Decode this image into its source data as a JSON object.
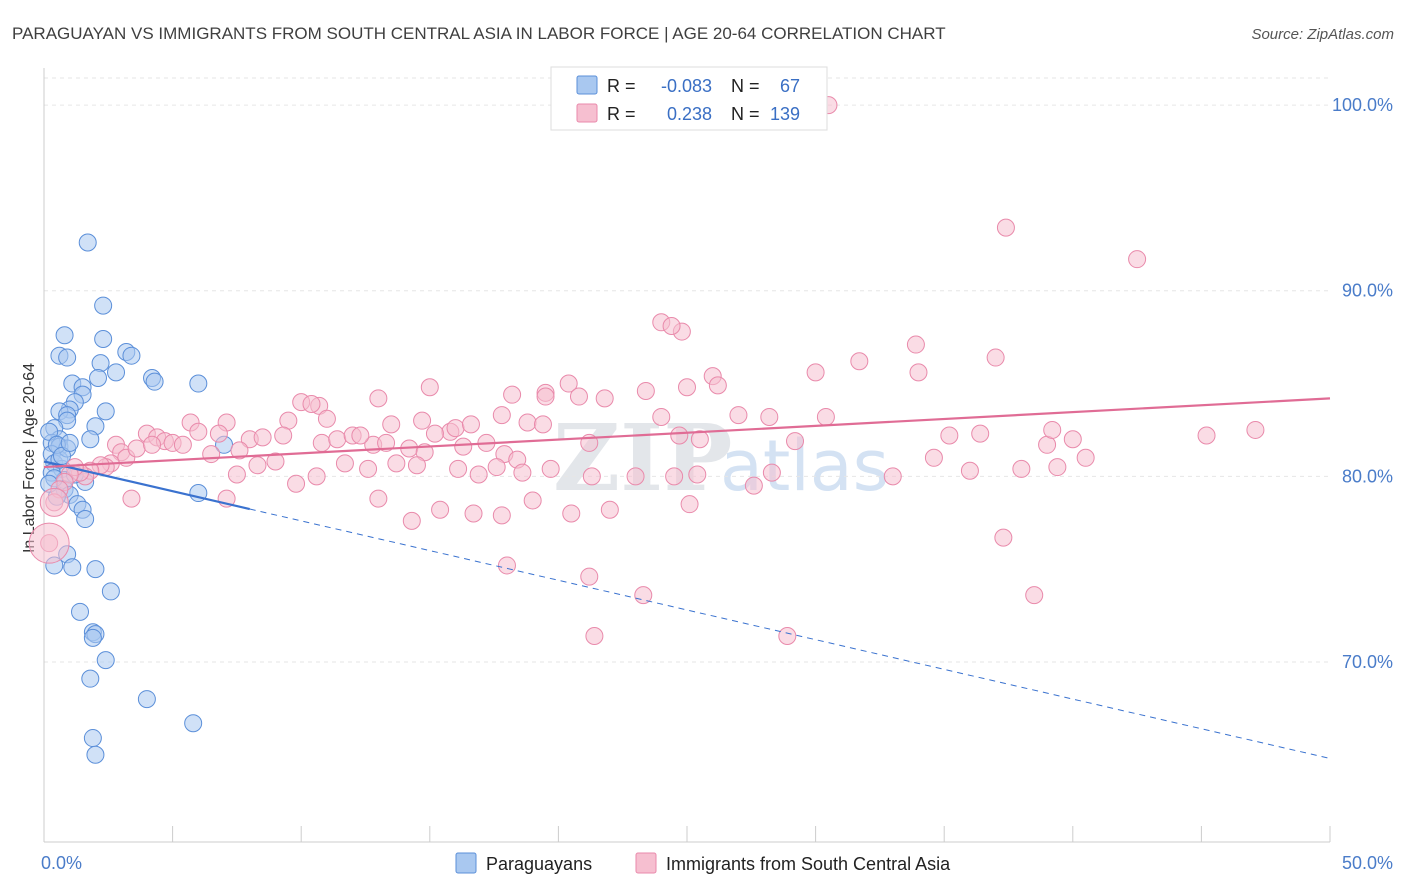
{
  "colors": {
    "blue_fill": "#a9c8f0",
    "blue_stroke": "#5b8fd9",
    "blue_line": "#3a72cf",
    "pink_fill": "#f6bfd0",
    "pink_stroke": "#e98aab",
    "pink_line": "#e06c95",
    "tick_text": "#4a7cc9",
    "grid": "#e6e6e6"
  },
  "source_label": "Source: ZipAtlas.com",
  "watermark": {
    "zip": "ZIP",
    "atlas": "atlas"
  },
  "legend": {
    "r_label": "R =",
    "n_label": "N =",
    "rows": [
      {
        "r": "-0.083",
        "n": "67"
      },
      {
        "r": "0.238",
        "n": "139"
      }
    ]
  },
  "chart_data": {
    "type": "scatter",
    "title": "PARAGUAYAN VS IMMIGRANTS FROM SOUTH CENTRAL ASIA IN LABOR FORCE | AGE 20-64 CORRELATION CHART",
    "xlabel": "",
    "ylabel": "In Labor Force | Age 20-64",
    "xlim": [
      0,
      50
    ],
    "ylim": [
      60.3,
      102
    ],
    "x_ticks": [
      {
        "value": 0,
        "label": "0.0%"
      },
      {
        "value": 50,
        "label": "50.0%"
      }
    ],
    "x_minor_ticks": [
      0,
      5,
      10,
      15,
      20,
      25,
      30,
      35,
      40,
      45,
      50
    ],
    "y_ticks": [
      {
        "value": 70,
        "label": "70.0%"
      },
      {
        "value": 80,
        "label": "80.0%"
      },
      {
        "value": 90,
        "label": "90.0%"
      },
      {
        "value": 100,
        "label": "100.0%"
      }
    ],
    "grid": true,
    "legend_position": "top-center",
    "series": [
      {
        "name": "Paraguayans",
        "color_key": "blue",
        "trend": {
          "x0": 0,
          "y0": 80.8,
          "x1_solid": 8,
          "x1": 50,
          "y1": 64.8
        },
        "points": [
          [
            1.7,
            92.6
          ],
          [
            2.3,
            89.2
          ],
          [
            0.8,
            87.6
          ],
          [
            2.3,
            87.4
          ],
          [
            0.6,
            86.5
          ],
          [
            0.9,
            86.4
          ],
          [
            3.2,
            86.7
          ],
          [
            3.4,
            86.5
          ],
          [
            2.2,
            86.1
          ],
          [
            2.8,
            85.6
          ],
          [
            2.1,
            85.3
          ],
          [
            4.2,
            85.3
          ],
          [
            4.3,
            85.1
          ],
          [
            6.0,
            85.0
          ],
          [
            1.1,
            85.0
          ],
          [
            1.5,
            84.8
          ],
          [
            1.5,
            84.4
          ],
          [
            1.2,
            84.0
          ],
          [
            1.0,
            83.6
          ],
          [
            0.6,
            83.5
          ],
          [
            0.9,
            83.3
          ],
          [
            2.4,
            83.5
          ],
          [
            0.9,
            83.0
          ],
          [
            0.4,
            82.6
          ],
          [
            2.0,
            82.7
          ],
          [
            0.6,
            82.0
          ],
          [
            0.3,
            81.8
          ],
          [
            0.6,
            81.6
          ],
          [
            0.3,
            81.2
          ],
          [
            0.2,
            82.4
          ],
          [
            1.8,
            82.0
          ],
          [
            7.0,
            81.7
          ],
          [
            0.4,
            80.7
          ],
          [
            0.7,
            80.4
          ],
          [
            0.3,
            80.2
          ],
          [
            0.8,
            79.8
          ],
          [
            1.6,
            79.7
          ],
          [
            0.8,
            79.3
          ],
          [
            1.0,
            79.0
          ],
          [
            0.5,
            78.9
          ],
          [
            6.0,
            79.1
          ],
          [
            1.3,
            78.5
          ],
          [
            1.5,
            78.2
          ],
          [
            1.6,
            77.7
          ],
          [
            0.9,
            75.8
          ],
          [
            0.4,
            75.2
          ],
          [
            2.0,
            75.0
          ],
          [
            1.1,
            75.1
          ],
          [
            2.6,
            73.8
          ],
          [
            1.4,
            72.7
          ],
          [
            1.9,
            71.6
          ],
          [
            2.0,
            71.5
          ],
          [
            1.9,
            71.3
          ],
          [
            2.4,
            70.1
          ],
          [
            1.8,
            69.1
          ],
          [
            4.0,
            68.0
          ],
          [
            5.8,
            66.7
          ],
          [
            1.9,
            65.9
          ],
          [
            2.0,
            65.0
          ],
          [
            0.6,
            80.9
          ],
          [
            0.9,
            81.5
          ],
          [
            0.5,
            81.7
          ],
          [
            0.7,
            81.1
          ],
          [
            1.0,
            81.8
          ],
          [
            0.4,
            79.9
          ],
          [
            0.2,
            79.6
          ],
          [
            1.2,
            80.1
          ]
        ]
      },
      {
        "name": "Immigrants from South Central Asia",
        "color_key": "pink",
        "trend": {
          "x0": 0,
          "y0": 80.5,
          "x1": 50,
          "y1": 84.2
        },
        "points": [
          [
            30.5,
            100.0
          ],
          [
            37.4,
            93.4
          ],
          [
            42.5,
            91.7
          ],
          [
            24.0,
            88.3
          ],
          [
            24.8,
            87.8
          ],
          [
            24.4,
            88.1
          ],
          [
            33.9,
            87.1
          ],
          [
            37.0,
            86.4
          ],
          [
            31.7,
            86.2
          ],
          [
            30.0,
            85.6
          ],
          [
            34.0,
            85.6
          ],
          [
            26.0,
            85.4
          ],
          [
            26.2,
            84.9
          ],
          [
            20.4,
            85.0
          ],
          [
            15.0,
            84.8
          ],
          [
            25.0,
            84.8
          ],
          [
            23.4,
            84.6
          ],
          [
            19.5,
            84.5
          ],
          [
            19.5,
            84.3
          ],
          [
            20.8,
            84.3
          ],
          [
            13.0,
            84.2
          ],
          [
            21.8,
            84.2
          ],
          [
            10.0,
            84.0
          ],
          [
            10.7,
            83.8
          ],
          [
            17.8,
            83.3
          ],
          [
            14.7,
            83.0
          ],
          [
            11.0,
            83.1
          ],
          [
            27.0,
            83.3
          ],
          [
            30.4,
            83.2
          ],
          [
            28.2,
            83.2
          ],
          [
            9.5,
            83.0
          ],
          [
            13.5,
            82.8
          ],
          [
            15.8,
            82.4
          ],
          [
            16.0,
            82.6
          ],
          [
            16.6,
            82.8
          ],
          [
            18.8,
            82.9
          ],
          [
            19.4,
            82.8
          ],
          [
            24.0,
            83.2
          ],
          [
            5.7,
            82.9
          ],
          [
            6.0,
            82.4
          ],
          [
            7.1,
            82.9
          ],
          [
            6.8,
            82.3
          ],
          [
            8.0,
            82.0
          ],
          [
            8.5,
            82.1
          ],
          [
            9.3,
            82.2
          ],
          [
            10.8,
            81.8
          ],
          [
            11.4,
            82.0
          ],
          [
            12.0,
            82.2
          ],
          [
            12.8,
            81.7
          ],
          [
            13.3,
            81.8
          ],
          [
            14.2,
            81.5
          ],
          [
            14.8,
            81.3
          ],
          [
            15.2,
            82.3
          ],
          [
            16.3,
            81.6
          ],
          [
            17.2,
            81.8
          ],
          [
            17.9,
            81.2
          ],
          [
            18.4,
            80.9
          ],
          [
            21.2,
            81.8
          ],
          [
            24.7,
            82.2
          ],
          [
            25.5,
            82.0
          ],
          [
            29.2,
            81.9
          ],
          [
            35.2,
            82.2
          ],
          [
            36.4,
            82.3
          ],
          [
            39.0,
            81.7
          ],
          [
            39.2,
            82.5
          ],
          [
            40.0,
            82.0
          ],
          [
            45.2,
            82.2
          ],
          [
            47.1,
            82.5
          ],
          [
            4.0,
            82.3
          ],
          [
            4.4,
            82.1
          ],
          [
            4.7,
            81.9
          ],
          [
            5.0,
            81.8
          ],
          [
            5.4,
            81.7
          ],
          [
            2.8,
            81.7
          ],
          [
            3.0,
            81.3
          ],
          [
            3.2,
            81.0
          ],
          [
            3.6,
            81.5
          ],
          [
            4.2,
            81.7
          ],
          [
            2.6,
            80.7
          ],
          [
            2.4,
            80.5
          ],
          [
            2.2,
            80.6
          ],
          [
            1.8,
            80.3
          ],
          [
            1.6,
            80.0
          ],
          [
            1.4,
            80.2
          ],
          [
            1.2,
            80.5
          ],
          [
            1.0,
            80.1
          ],
          [
            0.8,
            79.7
          ],
          [
            0.6,
            79.3
          ],
          [
            0.4,
            78.6
          ],
          [
            0.2,
            76.4
          ],
          [
            3.4,
            78.8
          ],
          [
            6.5,
            81.2
          ],
          [
            7.5,
            80.1
          ],
          [
            8.3,
            80.6
          ],
          [
            9.0,
            80.8
          ],
          [
            9.8,
            79.6
          ],
          [
            10.6,
            80.0
          ],
          [
            11.7,
            80.7
          ],
          [
            12.6,
            80.4
          ],
          [
            13.7,
            80.7
          ],
          [
            14.5,
            80.6
          ],
          [
            16.1,
            80.4
          ],
          [
            16.9,
            80.1
          ],
          [
            17.6,
            80.5
          ],
          [
            18.6,
            80.2
          ],
          [
            19.7,
            80.4
          ],
          [
            21.3,
            80.0
          ],
          [
            23.0,
            80.0
          ],
          [
            24.5,
            80.0
          ],
          [
            25.4,
            80.1
          ],
          [
            28.3,
            80.2
          ],
          [
            33.0,
            80.0
          ],
          [
            34.6,
            81.0
          ],
          [
            36.0,
            80.3
          ],
          [
            38.0,
            80.4
          ],
          [
            39.4,
            80.5
          ],
          [
            40.5,
            81.0
          ],
          [
            13.0,
            78.8
          ],
          [
            14.3,
            77.6
          ],
          [
            15.4,
            78.2
          ],
          [
            16.7,
            78.0
          ],
          [
            17.8,
            77.9
          ],
          [
            19.0,
            78.7
          ],
          [
            20.5,
            78.0
          ],
          [
            22.0,
            78.2
          ],
          [
            25.1,
            78.5
          ],
          [
            27.6,
            79.5
          ],
          [
            7.1,
            78.8
          ],
          [
            18.0,
            75.2
          ],
          [
            21.2,
            74.6
          ],
          [
            21.4,
            71.4
          ],
          [
            23.3,
            73.6
          ],
          [
            28.9,
            71.4
          ],
          [
            37.3,
            76.7
          ],
          [
            38.5,
            73.6
          ],
          [
            10.4,
            83.9
          ],
          [
            12.3,
            82.2
          ],
          [
            7.6,
            81.4
          ],
          [
            18.2,
            84.4
          ]
        ]
      }
    ]
  },
  "bottom_legend": [
    {
      "label": "Paraguayans",
      "color_key": "blue"
    },
    {
      "label": "Immigrants from South Central Asia",
      "color_key": "pink"
    }
  ]
}
